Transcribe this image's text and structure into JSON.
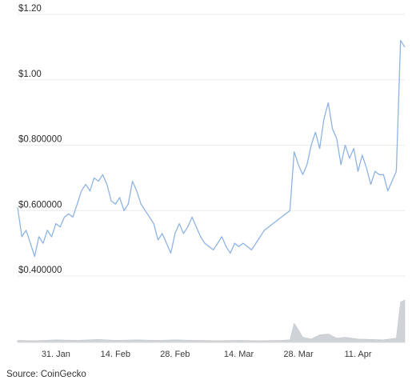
{
  "source": "Source: CoinGecko",
  "chart_data": {
    "type": "line",
    "title": "",
    "xlabel": "",
    "ylabel": "",
    "y_tick_labels": [
      {
        "value": 1.2,
        "label": "$1.20"
      },
      {
        "value": 1.0,
        "label": "$1.00"
      },
      {
        "value": 0.8,
        "label": "$0.800000"
      },
      {
        "value": 0.6,
        "label": "$0.600000"
      },
      {
        "value": 0.4,
        "label": "$0.400000"
      }
    ],
    "ylim": [
      0.4,
      1.2
    ],
    "x_tick_labels": [
      {
        "date": "2024-01-31",
        "label": "31. Jan"
      },
      {
        "date": "2024-02-14",
        "label": "14. Feb"
      },
      {
        "date": "2024-02-28",
        "label": "28. Feb"
      },
      {
        "date": "2024-03-14",
        "label": "14. Mar"
      },
      {
        "date": "2024-03-28",
        "label": "28. Mar"
      },
      {
        "date": "2024-04-11",
        "label": "11. Apr"
      }
    ],
    "xlim": [
      "2024-01-22",
      "2024-04-22"
    ],
    "grid": true,
    "colors": {
      "price": "#8fb4e3",
      "volume": "#cfd2d6",
      "grid": "#ececec"
    },
    "series": [
      {
        "values_key": "price",
        "points": [
          [
            "2024-01-22",
            0.61
          ],
          [
            "2024-01-23",
            0.52
          ],
          [
            "2024-01-24",
            0.54
          ],
          [
            "2024-01-25",
            0.5
          ],
          [
            "2024-01-26",
            0.46
          ],
          [
            "2024-01-27",
            0.52
          ],
          [
            "2024-01-28",
            0.5
          ],
          [
            "2024-01-29",
            0.54
          ],
          [
            "2024-01-30",
            0.52
          ],
          [
            "2024-01-31",
            0.56
          ],
          [
            "2024-02-01",
            0.55
          ],
          [
            "2024-02-02",
            0.58
          ],
          [
            "2024-02-03",
            0.59
          ],
          [
            "2024-02-04",
            0.58
          ],
          [
            "2024-02-05",
            0.62
          ],
          [
            "2024-02-06",
            0.66
          ],
          [
            "2024-02-07",
            0.68
          ],
          [
            "2024-02-08",
            0.66
          ],
          [
            "2024-02-09",
            0.7
          ],
          [
            "2024-02-10",
            0.69
          ],
          [
            "2024-02-11",
            0.71
          ],
          [
            "2024-02-12",
            0.68
          ],
          [
            "2024-02-13",
            0.63
          ],
          [
            "2024-02-14",
            0.62
          ],
          [
            "2024-02-15",
            0.64
          ],
          [
            "2024-02-16",
            0.6
          ],
          [
            "2024-02-17",
            0.62
          ],
          [
            "2024-02-18",
            0.69
          ],
          [
            "2024-02-19",
            0.66
          ],
          [
            "2024-02-20",
            0.62
          ],
          [
            "2024-02-21",
            0.6
          ],
          [
            "2024-02-22",
            0.58
          ],
          [
            "2024-02-23",
            0.56
          ],
          [
            "2024-02-24",
            0.51
          ],
          [
            "2024-02-25",
            0.53
          ],
          [
            "2024-02-26",
            0.5
          ],
          [
            "2024-02-27",
            0.47
          ],
          [
            "2024-02-28",
            0.53
          ],
          [
            "2024-02-29",
            0.56
          ],
          [
            "2024-03-01",
            0.53
          ],
          [
            "2024-03-02",
            0.55
          ],
          [
            "2024-03-03",
            0.58
          ],
          [
            "2024-03-04",
            0.55
          ],
          [
            "2024-03-05",
            0.52
          ],
          [
            "2024-03-06",
            0.5
          ],
          [
            "2024-03-07",
            0.49
          ],
          [
            "2024-03-08",
            0.48
          ],
          [
            "2024-03-09",
            0.5
          ],
          [
            "2024-03-10",
            0.52
          ],
          [
            "2024-03-11",
            0.49
          ],
          [
            "2024-03-12",
            0.47
          ],
          [
            "2024-03-13",
            0.5
          ],
          [
            "2024-03-14",
            0.49
          ],
          [
            "2024-03-15",
            0.5
          ],
          [
            "2024-03-16",
            0.49
          ],
          [
            "2024-03-17",
            0.48
          ],
          [
            "2024-03-18",
            0.5
          ],
          [
            "2024-03-19",
            0.52
          ],
          [
            "2024-03-20",
            0.54
          ],
          [
            "2024-03-21",
            0.55
          ],
          [
            "2024-03-22",
            0.56
          ],
          [
            "2024-03-23",
            0.57
          ],
          [
            "2024-03-24",
            0.58
          ],
          [
            "2024-03-25",
            0.59
          ],
          [
            "2024-03-26",
            0.6
          ],
          [
            "2024-03-27",
            0.78
          ],
          [
            "2024-03-28",
            0.74
          ],
          [
            "2024-03-29",
            0.71
          ],
          [
            "2024-03-30",
            0.74
          ],
          [
            "2024-03-31",
            0.8
          ],
          [
            "2024-04-01",
            0.84
          ],
          [
            "2024-04-02",
            0.79
          ],
          [
            "2024-04-03",
            0.88
          ],
          [
            "2024-04-04",
            0.93
          ],
          [
            "2024-04-05",
            0.85
          ],
          [
            "2024-04-06",
            0.82
          ],
          [
            "2024-04-07",
            0.74
          ],
          [
            "2024-04-08",
            0.8
          ],
          [
            "2024-04-09",
            0.76
          ],
          [
            "2024-04-10",
            0.79
          ],
          [
            "2024-04-11",
            0.72
          ],
          [
            "2024-04-12",
            0.77
          ],
          [
            "2024-04-13",
            0.73
          ],
          [
            "2024-04-14",
            0.68
          ],
          [
            "2024-04-15",
            0.72
          ],
          [
            "2024-04-16",
            0.71
          ],
          [
            "2024-04-17",
            0.71
          ],
          [
            "2024-04-18",
            0.66
          ],
          [
            "2024-04-19",
            0.69
          ],
          [
            "2024-04-20",
            0.72
          ],
          [
            "2024-04-21",
            1.12
          ],
          [
            "2024-04-22",
            1.1
          ]
        ]
      },
      {
        "values_key": "volume",
        "volume_relative": [
          [
            "2024-01-22",
            0.05
          ],
          [
            "2024-01-26",
            0.04
          ],
          [
            "2024-01-31",
            0.06
          ],
          [
            "2024-02-05",
            0.05
          ],
          [
            "2024-02-10",
            0.07
          ],
          [
            "2024-02-14",
            0.05
          ],
          [
            "2024-02-19",
            0.06
          ],
          [
            "2024-02-24",
            0.05
          ],
          [
            "2024-02-28",
            0.06
          ],
          [
            "2024-03-04",
            0.05
          ],
          [
            "2024-03-09",
            0.04
          ],
          [
            "2024-03-14",
            0.05
          ],
          [
            "2024-03-19",
            0.04
          ],
          [
            "2024-03-24",
            0.05
          ],
          [
            "2024-03-26",
            0.06
          ],
          [
            "2024-03-27",
            0.45
          ],
          [
            "2024-03-28",
            0.3
          ],
          [
            "2024-03-29",
            0.12
          ],
          [
            "2024-03-31",
            0.08
          ],
          [
            "2024-04-02",
            0.18
          ],
          [
            "2024-04-04",
            0.2
          ],
          [
            "2024-04-06",
            0.1
          ],
          [
            "2024-04-08",
            0.12
          ],
          [
            "2024-04-11",
            0.08
          ],
          [
            "2024-04-14",
            0.07
          ],
          [
            "2024-04-17",
            0.06
          ],
          [
            "2024-04-20",
            0.1
          ],
          [
            "2024-04-21",
            0.95
          ],
          [
            "2024-04-22",
            1.0
          ]
        ]
      }
    ]
  }
}
